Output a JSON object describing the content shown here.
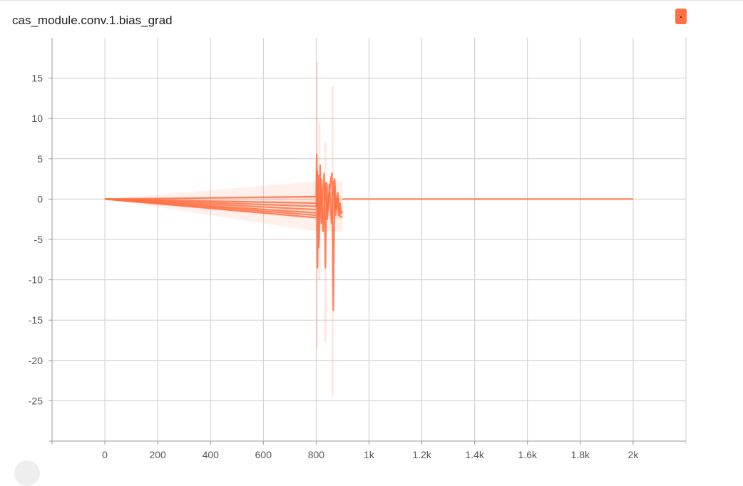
{
  "header": {
    "title": "cas_module.conv.1.bias_grad"
  },
  "legend": {
    "color": "#ff7043",
    "icon": "series-color-swatch-icon"
  },
  "chart_data": {
    "type": "line",
    "title": "cas_module.conv.1.bias_grad",
    "xlabel": "",
    "ylabel": "",
    "xlim": [
      -200,
      2200
    ],
    "ylim": [
      -30,
      20
    ],
    "grid": true,
    "legend_position": "top-right",
    "x_ticks": [
      {
        "value": 0,
        "label": "0"
      },
      {
        "value": 200,
        "label": "200"
      },
      {
        "value": 400,
        "label": "400"
      },
      {
        "value": 600,
        "label": "600"
      },
      {
        "value": 800,
        "label": "800"
      },
      {
        "value": 1000,
        "label": "1k"
      },
      {
        "value": 1200,
        "label": "1.2k"
      },
      {
        "value": 1400,
        "label": "1.4k"
      },
      {
        "value": 1600,
        "label": "1.6k"
      },
      {
        "value": 1800,
        "label": "1.8k"
      },
      {
        "value": 2000,
        "label": "2k"
      }
    ],
    "y_ticks": [
      {
        "value": 15,
        "label": "15"
      },
      {
        "value": 10,
        "label": "10"
      },
      {
        "value": 5,
        "label": "5"
      },
      {
        "value": 0,
        "label": "0"
      },
      {
        "value": -5,
        "label": "-5"
      },
      {
        "value": -10,
        "label": "-10"
      },
      {
        "value": -15,
        "label": "-15"
      },
      {
        "value": -20,
        "label": "-20"
      },
      {
        "value": -25,
        "label": "-25"
      }
    ],
    "series_color": "#ff7043",
    "bands": [
      {
        "x": [
          0,
          800,
          900
        ],
        "upper": [
          0,
          2.2,
          2.2
        ],
        "lower": [
          0,
          -4.0,
          -4.0
        ]
      },
      {
        "x": [
          0,
          800,
          900
        ],
        "upper": [
          0,
          0.5,
          0.5
        ],
        "lower": [
          0,
          -2.5,
          -2.5
        ]
      }
    ],
    "series": [
      {
        "x": [
          0,
          800
        ],
        "y": [
          0,
          0.3
        ]
      },
      {
        "x": [
          0,
          800
        ],
        "y": [
          0,
          -0.5
        ]
      },
      {
        "x": [
          0,
          800
        ],
        "y": [
          0,
          -0.9
        ]
      },
      {
        "x": [
          0,
          800
        ],
        "y": [
          0,
          -1.3
        ]
      },
      {
        "x": [
          0,
          800
        ],
        "y": [
          0,
          -1.7
        ]
      },
      {
        "x": [
          0,
          800
        ],
        "y": [
          0,
          -2.0
        ]
      },
      {
        "x": [
          0,
          800
        ],
        "y": [
          0,
          -2.3
        ]
      },
      {
        "x": [
          800,
          802,
          805,
          808,
          812,
          815,
          820,
          825,
          830,
          835,
          840,
          845,
          850,
          855,
          860,
          865,
          870,
          875,
          880,
          885,
          890,
          895,
          900
        ],
        "y": [
          0.3,
          5.5,
          -8.5,
          3.0,
          -2.0,
          4.2,
          -3.0,
          1.0,
          3.2,
          -8.5,
          2.0,
          -1.5,
          0.5,
          2.5,
          3.2,
          -13.8,
          2.5,
          -1.2,
          0.2,
          -2.0,
          -0.5,
          -1.8,
          -1.5
        ]
      },
      {
        "x": [
          800,
          804,
          810,
          818,
          826,
          834,
          842,
          850,
          858,
          866,
          874,
          882,
          890,
          900
        ],
        "y": [
          -1.0,
          3.5,
          -6.0,
          2.5,
          -4.0,
          2.0,
          -2.5,
          1.8,
          -3.0,
          2.2,
          -2.0,
          0.8,
          -2.2,
          -2.2
        ]
      },
      {
        "x": [
          900,
          2000
        ],
        "y": [
          0,
          0
        ]
      }
    ],
    "spike_bands": [
      {
        "x": 803,
        "upper": 17.0,
        "lower": -18.5
      },
      {
        "x": 812,
        "upper": 9.5,
        "lower": -10.0
      },
      {
        "x": 835,
        "upper": 7.0,
        "lower": -17.8
      },
      {
        "x": 862,
        "upper": 14.0,
        "lower": -24.5
      }
    ]
  }
}
